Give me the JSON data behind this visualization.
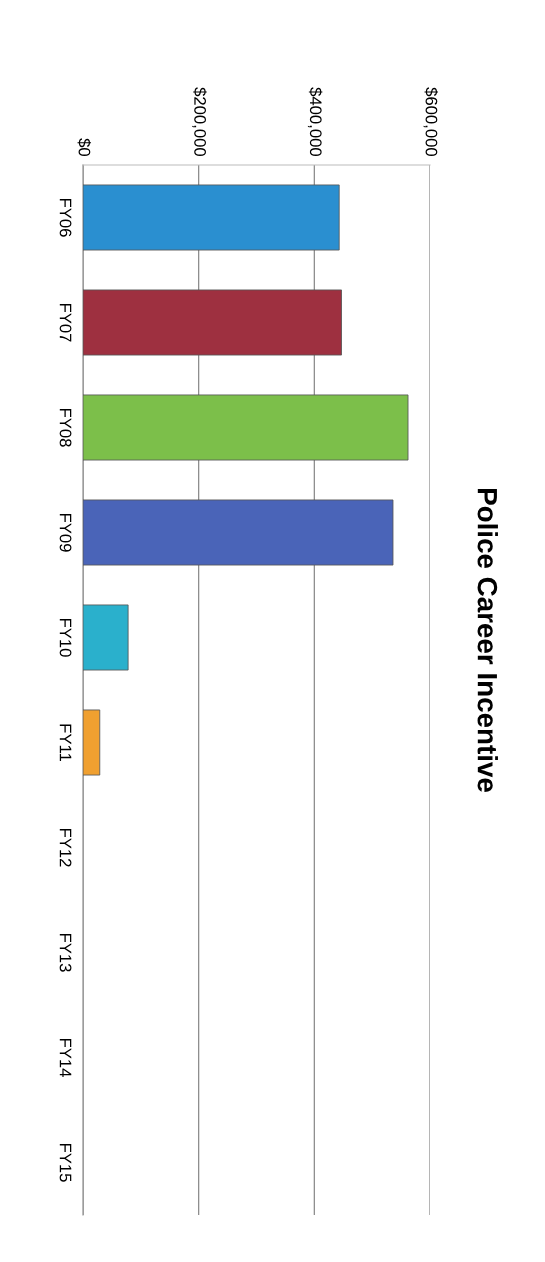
{
  "chart_data": {
    "type": "bar",
    "orientation": "horizontal",
    "title": "Police Career Incentive",
    "categories": [
      "FY06",
      "FY07",
      "FY08",
      "FY09",
      "FY10",
      "FY11",
      "FY12",
      "FY13",
      "FY14",
      "FY15"
    ],
    "values": [
      443000,
      447000,
      562000,
      536000,
      78000,
      29000,
      null,
      null,
      null,
      null
    ],
    "colors": [
      "#2a8fd0",
      "#9e3040",
      "#7cbf4a",
      "#4a64b8",
      "#2ab0cc",
      "#f0a030",
      "#2a8fd0",
      "#9e3040",
      "#7cbf4a",
      "#4a64b8"
    ],
    "xlim": [
      0,
      600000
    ],
    "xticks": [
      {
        "value": 0,
        "label": "$0"
      },
      {
        "value": 200000,
        "label": "$200,000"
      },
      {
        "value": 400000,
        "label": "$400,000"
      },
      {
        "value": 600000,
        "label": "$600,000"
      }
    ],
    "grid": "x",
    "legend": false
  }
}
